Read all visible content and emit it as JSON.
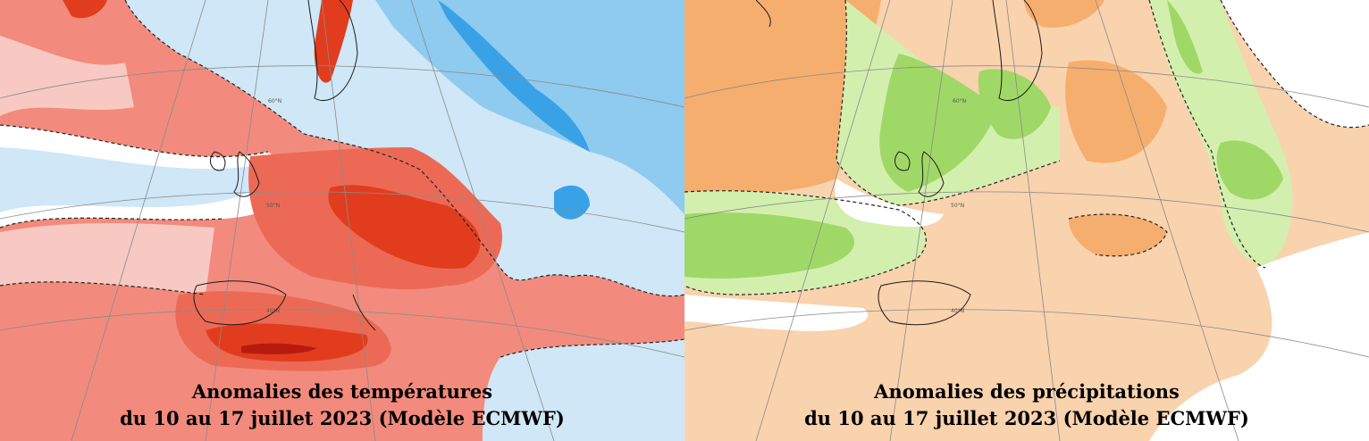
{
  "panels": [
    {
      "id": "temperature",
      "caption_line1": "Anomalies des températures",
      "caption_line2": "du 10 au 17 juillet 2023 (Modèle ECMWF)",
      "palette": {
        "warm_light": "#f7c9c2",
        "warm_mid": "#f28b7d",
        "warm_strong": "#ec6a55",
        "warm_deep": "#e23c1f",
        "warm_max": "#b81a0e",
        "cool_light": "#cfe7f7",
        "cool_mid": "#8fcaef",
        "cool_strong": "#39a2e6",
        "neutral": "#ffffff"
      }
    },
    {
      "id": "precipitation",
      "caption_line1": "Anomalies des précipitations",
      "caption_line2": "du 10 au 17 juillet 2023 (Modèle ECMWF)",
      "palette": {
        "dry_light": "#f9d2ae",
        "dry_mid": "#f6ae6e",
        "wet_light": "#d3efae",
        "wet_mid": "#9fd866",
        "wet_strong": "#5dc02e",
        "neutral": "#ffffff"
      }
    }
  ],
  "graticule": {
    "lat_labels": [
      "60°N",
      "50°N",
      "40°N"
    ]
  }
}
